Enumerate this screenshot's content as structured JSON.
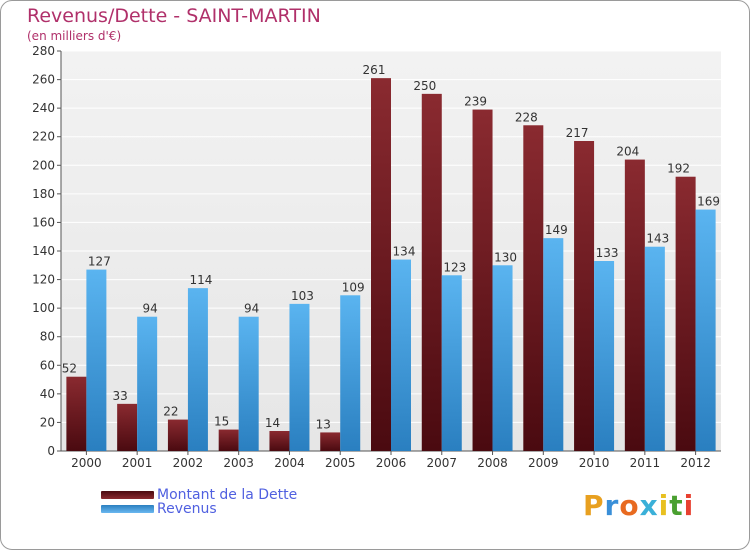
{
  "chart_data": {
    "type": "bar",
    "title": "Revenus/Dette - SAINT-MARTIN",
    "subtitle": "(en milliers d'€)",
    "categories": [
      "2000",
      "2001",
      "2002",
      "2003",
      "2004",
      "2005",
      "2006",
      "2007",
      "2008",
      "2009",
      "2010",
      "2011",
      "2012"
    ],
    "series": [
      {
        "name": "Montant de la Dette",
        "color": "#7a1c22",
        "values": [
          52,
          33,
          22,
          15,
          14,
          13,
          261,
          250,
          239,
          228,
          217,
          204,
          192
        ]
      },
      {
        "name": "Revenus",
        "color": "#4aa3e0",
        "values": [
          127,
          94,
          114,
          94,
          103,
          109,
          134,
          123,
          130,
          149,
          133,
          143,
          169
        ]
      }
    ],
    "ylim": [
      0,
      280
    ],
    "yticks": [
      0,
      20,
      40,
      60,
      80,
      100,
      120,
      140,
      160,
      180,
      200,
      220,
      240,
      260,
      280
    ],
    "grid": true,
    "legend_position": "bottom-left"
  },
  "logo": {
    "text": "Proxiti"
  }
}
